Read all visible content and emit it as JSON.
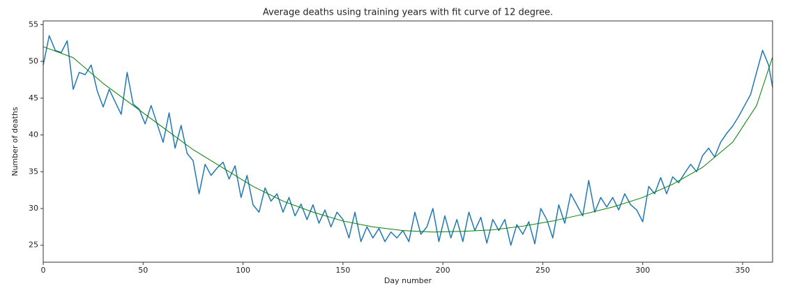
{
  "chart_data": {
    "type": "line",
    "title": "Average deaths using training years with fit curve of 12 degree.",
    "xlabel": "Day number",
    "ylabel": "Number of deaths",
    "xlim": [
      0,
      365
    ],
    "xticks": [
      0,
      50,
      100,
      150,
      200,
      250,
      300,
      350
    ],
    "ylim": [
      22.7,
      55.5
    ],
    "yticks": [
      25,
      30,
      35,
      40,
      45,
      50,
      55
    ],
    "series": [
      {
        "color": "#1f77b4",
        "x": [
          0,
          3,
          6,
          9,
          12,
          15,
          18,
          21,
          24,
          27,
          30,
          33,
          36,
          39,
          42,
          45,
          48,
          51,
          54,
          57,
          60,
          63,
          66,
          69,
          72,
          75,
          78,
          81,
          84,
          87,
          90,
          93,
          96,
          99,
          102,
          105,
          108,
          111,
          114,
          117,
          120,
          123,
          126,
          129,
          132,
          135,
          138,
          141,
          144,
          147,
          150,
          153,
          156,
          159,
          162,
          165,
          168,
          171,
          174,
          177,
          180,
          183,
          186,
          189,
          192,
          195,
          198,
          201,
          204,
          207,
          210,
          213,
          216,
          219,
          222,
          225,
          228,
          231,
          234,
          237,
          240,
          243,
          246,
          249,
          252,
          255,
          258,
          261,
          264,
          267,
          270,
          273,
          276,
          279,
          282,
          285,
          288,
          291,
          294,
          297,
          300,
          303,
          306,
          309,
          312,
          315,
          318,
          321,
          324,
          327,
          330,
          333,
          336,
          339,
          342,
          345,
          348,
          351,
          354,
          357,
          360,
          363,
          365
        ],
        "values": [
          49.5,
          53.5,
          51.5,
          51.2,
          52.8,
          46.2,
          48.5,
          48.2,
          49.5,
          46,
          43.8,
          46.2,
          44.5,
          42.8,
          48.5,
          44.2,
          43.5,
          41.5,
          44,
          41.5,
          39,
          43,
          38.2,
          41.3,
          37.5,
          36.5,
          32,
          36,
          34.5,
          35.5,
          36.3,
          34,
          35.8,
          31.5,
          34.5,
          30.5,
          29.5,
          32.8,
          31,
          32,
          29.5,
          31.5,
          29,
          30.6,
          28.5,
          30.5,
          28,
          29.8,
          27.5,
          29.5,
          28.5,
          26,
          29.5,
          25.5,
          27.5,
          26,
          27.3,
          25.5,
          26.8,
          26,
          27,
          25.5,
          29.5,
          26.5,
          27.5,
          30,
          25.5,
          29,
          26,
          28.5,
          25.5,
          29.5,
          27,
          28.8,
          25.3,
          28.5,
          27,
          28.5,
          25,
          27.8,
          26.5,
          28.2,
          25.2,
          30,
          28.5,
          26,
          30.5,
          28,
          32,
          30.5,
          29,
          33.8,
          29.5,
          31.5,
          30.2,
          31.5,
          29.8,
          32,
          30.5,
          29.8,
          28.2,
          33,
          32,
          34.2,
          32,
          34.3,
          33.5,
          34.8,
          36,
          35,
          37.2,
          38.2,
          37,
          39,
          40.2,
          41.2,
          42.5,
          44,
          45.5,
          48.5,
          51.5,
          49.5,
          46.5
        ]
      },
      {
        "color": "#008000",
        "x": [
          0,
          15,
          30,
          45,
          60,
          75,
          90,
          105,
          120,
          135,
          150,
          165,
          180,
          195,
          210,
          225,
          240,
          255,
          270,
          285,
          300,
          315,
          330,
          345,
          357,
          365
        ],
        "values": [
          52,
          50.5,
          47,
          44,
          41,
          38,
          35.5,
          33,
          31,
          29.5,
          28.3,
          27.5,
          27,
          26.8,
          26.9,
          27.1,
          27.6,
          28.3,
          29.2,
          30.2,
          31.5,
          33.3,
          35.6,
          39,
          44,
          50.6
        ]
      }
    ]
  }
}
